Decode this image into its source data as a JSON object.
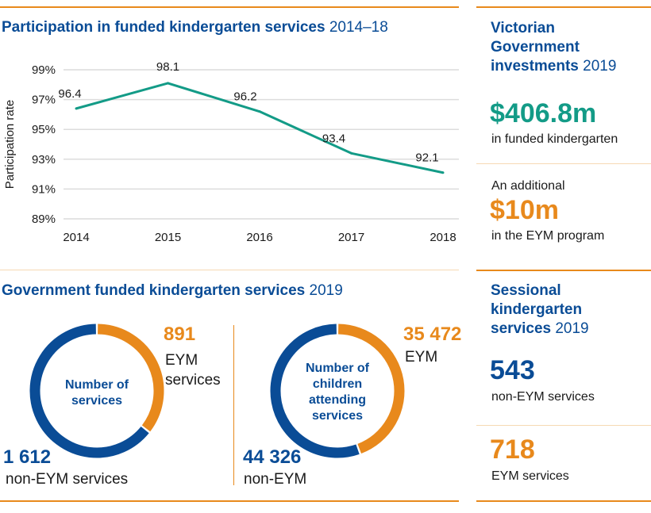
{
  "colors": {
    "blue": "#0a4c96",
    "orange": "#e8891c",
    "teal": "#139b87"
  },
  "chart_data": [
    {
      "type": "line",
      "title": "Participation in funded kindergarten services",
      "title_suffix": "2014–18",
      "ylabel": "Participation rate",
      "xlabel": "",
      "categories": [
        "2014",
        "2015",
        "2016",
        "2017",
        "2018"
      ],
      "values": [
        96.4,
        98.1,
        96.2,
        93.4,
        92.1
      ],
      "data_labels": [
        "96.4",
        "98.1",
        "96.2",
        "93.4",
        "92.1"
      ],
      "ylim": [
        89,
        99
      ],
      "yticks": [
        "99%",
        "97%",
        "95%",
        "93%",
        "91%",
        "89%"
      ],
      "grid": true
    },
    {
      "type": "pie",
      "variant": "donut",
      "center_label": "Number of services",
      "slices": [
        {
          "label": "EYM services",
          "value": 891,
          "value_text": "891",
          "color": "#e8891c"
        },
        {
          "label": "non-EYM services",
          "value": 1612,
          "value_text": "1 612",
          "color": "#0a4c96"
        }
      ]
    },
    {
      "type": "pie",
      "variant": "donut",
      "center_label": "Number of children attending services",
      "slices": [
        {
          "label": "EYM",
          "value": 35472,
          "value_text": "35 472",
          "color": "#e8891c"
        },
        {
          "label": "non-EYM",
          "value": 44326,
          "value_text": "44 326",
          "color": "#0a4c96"
        }
      ]
    }
  ],
  "services_section": {
    "title": "Government funded kindergarten services",
    "title_suffix": "2019"
  },
  "investments": {
    "title": "Victorian Government investments",
    "title_suffix": "2019",
    "amount1": "$406.8m",
    "desc1": "in funded kindergarten",
    "pre2": "An additional",
    "amount2": "$10m",
    "desc2": "in the EYM program"
  },
  "sessional": {
    "title": "Sessional kindergarten services",
    "title_suffix": "2019",
    "value1": "543",
    "desc1": "non-EYM services",
    "value2": "718",
    "desc2": "EYM services"
  }
}
